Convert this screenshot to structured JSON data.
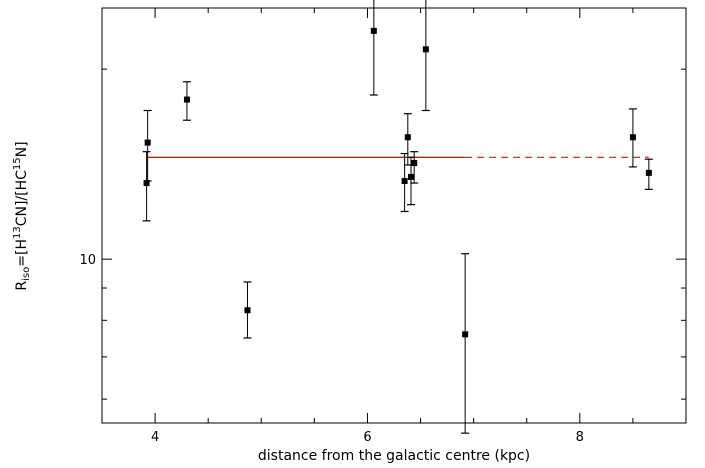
{
  "chart_data": {
    "type": "scatter",
    "title": "",
    "xlabel": "distance from the galactic centre (kpc)",
    "ylabel_parts": {
      "r": "R",
      "r_sub": "iso",
      "eq1": "=[H",
      "sup13": "13",
      "eq2": "CN]/[HC",
      "sup15": "15",
      "eq3": "N]"
    },
    "xlim": [
      3.5,
      9.0
    ],
    "ylim": [
      5.5,
      25.0
    ],
    "yscale": "log",
    "grid": false,
    "x_ticks": [
      {
        "value": 4,
        "label": "4"
      },
      {
        "value": 6,
        "label": "6"
      },
      {
        "value": 8,
        "label": "8"
      }
    ],
    "y_tick_label": {
      "value": 10,
      "label": "10"
    },
    "y_minor_ticks": [
      6,
      7,
      8,
      9,
      20
    ],
    "points": [
      {
        "x": 3.92,
        "y": 13.2,
        "lo": 11.5,
        "hi": 14.8
      },
      {
        "x": 3.93,
        "y": 15.3,
        "lo": 13.3,
        "hi": 17.2
      },
      {
        "x": 4.3,
        "y": 17.9,
        "lo": 16.6,
        "hi": 19.1
      },
      {
        "x": 4.87,
        "y": 8.3,
        "lo": 7.5,
        "hi": 9.2
      },
      {
        "x": 6.06,
        "y": 23.0,
        "lo": 18.2,
        "hi": 27.8
      },
      {
        "x": 6.35,
        "y": 13.3,
        "lo": 11.9,
        "hi": 14.7
      },
      {
        "x": 6.38,
        "y": 15.6,
        "lo": 14.1,
        "hi": 17.0
      },
      {
        "x": 6.41,
        "y": 13.5,
        "lo": 12.2,
        "hi": 14.5
      },
      {
        "x": 6.44,
        "y": 14.2,
        "lo": 13.2,
        "hi": 14.8
      },
      {
        "x": 6.55,
        "y": 21.5,
        "lo": 17.2,
        "hi": 26.0
      },
      {
        "x": 6.92,
        "y": 7.6,
        "lo": 5.3,
        "hi": 10.2
      },
      {
        "x": 8.5,
        "y": 15.6,
        "lo": 14.0,
        "hi": 17.3
      },
      {
        "x": 8.65,
        "y": 13.7,
        "lo": 12.9,
        "hi": 14.4
      }
    ],
    "fit": {
      "solid": {
        "x": [
          3.92,
          6.92
        ],
        "y": 14.5
      },
      "dashed": {
        "x": [
          6.92,
          8.65
        ],
        "y": 14.5
      },
      "color": "#ff0000"
    }
  }
}
